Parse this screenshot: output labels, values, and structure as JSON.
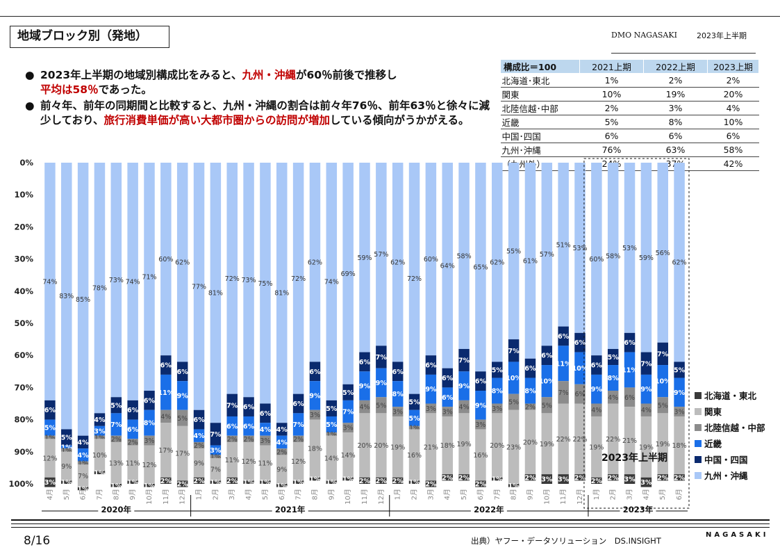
{
  "page": {
    "title": "地域ブロック別（発地）",
    "org": "DMO NAGASAKI",
    "period": "2023年上半期",
    "page_number": "8/16",
    "source": "出典）ヤフー・データソリューション　DS.INSIGHT",
    "brand": "NAGASAKI"
  },
  "bullets": [
    {
      "parts": [
        {
          "text": "2023年上半期の地域別構成比をみると、",
          "red": false
        },
        {
          "text": "九州・沖縄",
          "red": true
        },
        {
          "text": "が60％前後で推移し",
          "red": false
        },
        {
          "text": "平均は58％",
          "red": true
        },
        {
          "text": "であった。",
          "red": false
        }
      ]
    },
    {
      "parts": [
        {
          "text": "前々年、前年の同期間と比較すると、九州・沖縄の割合は前々年76％、前年63％と徐々に減少しており、",
          "red": false
        },
        {
          "text": "旅行消費単価が高い大都市圏からの訪問が増加",
          "red": true
        },
        {
          "text": "している傾向がうかがえる。",
          "red": false
        }
      ]
    }
  ],
  "summary_table": {
    "headers": [
      "構成比＝100",
      "2021上期",
      "2022上期",
      "2023上期"
    ],
    "rows": [
      [
        "北海道･東北",
        "1%",
        "2%",
        "2%"
      ],
      [
        "関東",
        "10%",
        "19%",
        "20%"
      ],
      [
        "北陸信越･中部",
        "2%",
        "3%",
        "4%"
      ],
      [
        "近畿",
        "5%",
        "8%",
        "10%"
      ],
      [
        "中国･四国",
        "6%",
        "6%",
        "6%"
      ],
      [
        "九州･沖縄",
        "76%",
        "63%",
        "58%"
      ],
      [
        "（九州外）",
        "24%",
        "37%",
        "42%"
      ]
    ]
  },
  "highlight_label": "2023年上半期",
  "chart_data": {
    "type": "bar",
    "stacked": true,
    "orientation": "vertical",
    "y_axis_inverted": true,
    "ylim": [
      0,
      100
    ],
    "yticks": [
      "0%",
      "10%",
      "20%",
      "30%",
      "40%",
      "50%",
      "60%",
      "70%",
      "80%",
      "90%",
      "100%"
    ],
    "categories": [
      "4月",
      "5月",
      "6月",
      "7月",
      "8月",
      "9月",
      "10月",
      "11月",
      "12月",
      "1月",
      "2月",
      "3月",
      "4月",
      "5月",
      "6月",
      "7月",
      "8月",
      "9月",
      "10月",
      "11月",
      "12月",
      "1月",
      "2月",
      "3月",
      "4月",
      "5月",
      "6月",
      "7月",
      "8月",
      "9月",
      "10月",
      "11月",
      "12月",
      "1月",
      "2月",
      "3月",
      "4月",
      "5月",
      "6月"
    ],
    "year_groups": [
      {
        "label": "2020年",
        "start": 0,
        "end": 8
      },
      {
        "label": "2021年",
        "start": 9,
        "end": 20
      },
      {
        "label": "2022年",
        "start": 21,
        "end": 32
      },
      {
        "label": "2023年",
        "start": 33,
        "end": 38
      }
    ],
    "highlight_range": [
      33,
      38
    ],
    "series": [
      {
        "name": "九州・沖縄",
        "color": "#a9c8f7",
        "values": [
          74,
          83,
          85,
          78,
          73,
          74,
          71,
          60,
          62,
          77,
          81,
          72,
          73,
          75,
          81,
          72,
          62,
          74,
          69,
          59,
          57,
          62,
          72,
          60,
          64,
          58,
          65,
          62,
          55,
          61,
          57,
          51,
          53,
          60,
          58,
          53,
          59,
          56,
          62
        ]
      },
      {
        "name": "中国・四国",
        "color": "#0a2a6e",
        "values": [
          6,
          5,
          4,
          4,
          5,
          6,
          6,
          6,
          6,
          6,
          7,
          7,
          6,
          6,
          4,
          6,
          6,
          5,
          5,
          6,
          7,
          6,
          5,
          6,
          6,
          7,
          6,
          5,
          7,
          6,
          6,
          6,
          6,
          6,
          5,
          6,
          7,
          7,
          5
        ]
      },
      {
        "name": "近畿",
        "color": "#1a6fe8",
        "values": [
          5,
          1,
          4,
          3,
          7,
          6,
          8,
          11,
          9,
          4,
          3,
          6,
          6,
          4,
          4,
          7,
          9,
          5,
          7,
          9,
          9,
          8,
          5,
          9,
          6,
          9,
          9,
          8,
          10,
          8,
          10,
          11,
          10,
          9,
          8,
          11,
          9,
          10,
          9
        ]
      },
      {
        "name": "北陸信越・中部",
        "color": "#8c8c8c",
        "values": [
          1,
          1,
          1,
          1,
          2,
          2,
          3,
          4,
          5,
          2,
          1,
          2,
          2,
          3,
          2,
          2,
          3,
          1,
          3,
          4,
          5,
          3,
          1,
          3,
          3,
          4,
          3,
          3,
          5,
          2,
          5,
          7,
          6,
          4,
          4,
          6,
          4,
          5,
          3
        ]
      },
      {
        "name": "関東",
        "color": "#bcbcbc",
        "values": [
          12,
          9,
          7,
          10,
          13,
          11,
          12,
          17,
          17,
          9,
          7,
          11,
          12,
          11,
          9,
          12,
          18,
          14,
          14,
          20,
          20,
          19,
          16,
          21,
          18,
          19,
          16,
          20,
          23,
          20,
          19,
          22,
          22,
          19,
          22,
          21,
          19,
          19,
          18
        ]
      },
      {
        "name": "北海道・東北",
        "color": "#3a3a3a",
        "values": [
          3,
          1,
          1,
          1,
          1,
          1,
          1,
          2,
          2,
          2,
          1,
          2,
          1,
          1,
          1,
          1,
          1,
          1,
          1,
          2,
          2,
          2,
          1,
          2,
          2,
          2,
          2,
          1,
          1,
          2,
          3,
          3,
          2,
          2,
          2,
          3,
          3,
          2,
          2
        ]
      }
    ],
    "legend_order": [
      "北海道・東北",
      "関東",
      "北陸信越・中部",
      "近畿",
      "中国・四国",
      "九州・沖縄"
    ],
    "legend_position": "right"
  }
}
